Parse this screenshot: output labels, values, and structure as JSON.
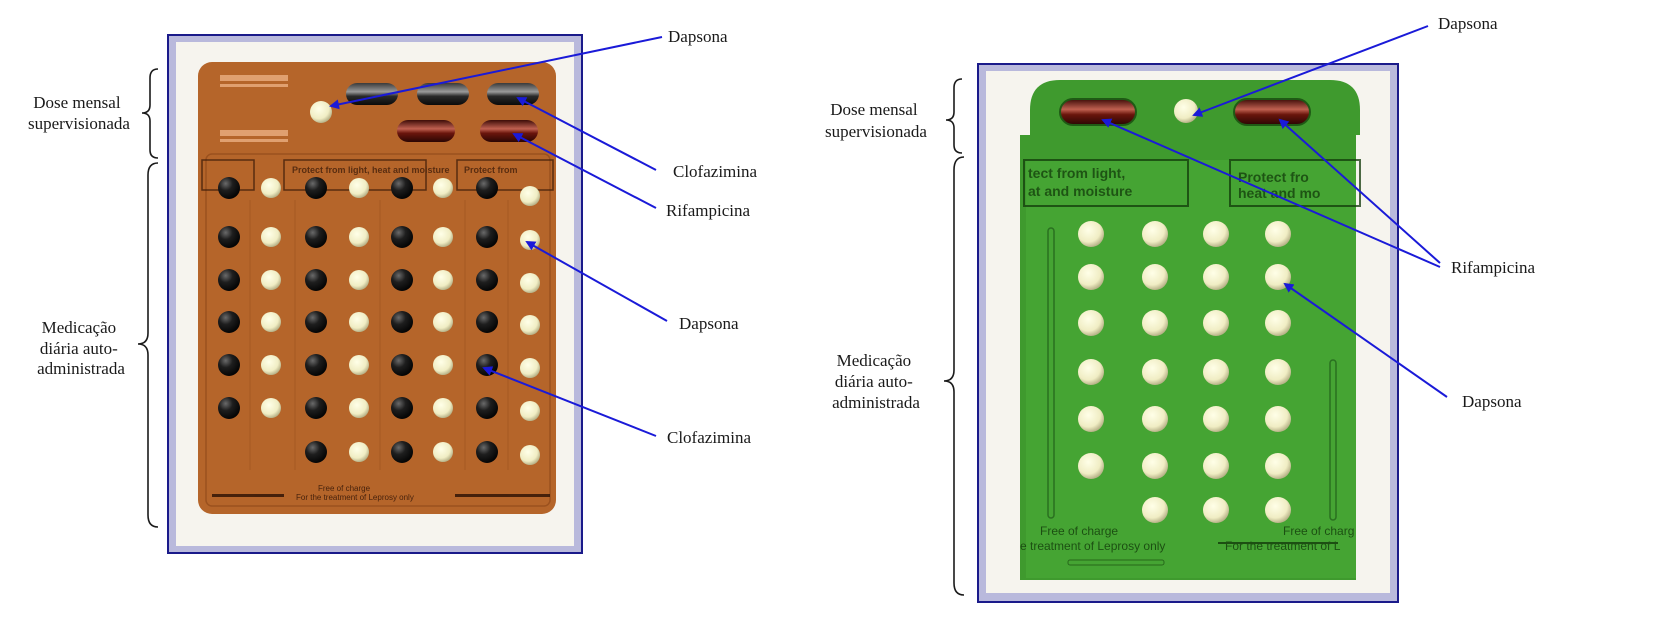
{
  "left_panel": {
    "side_labels": {
      "dose": [
        "Dose mensal",
        "supervisionada"
      ],
      "daily": [
        "Medicação",
        "diária auto-",
        "administrada"
      ]
    },
    "callouts": {
      "dapsona_top": "Dapsona",
      "clofazimina_top": "Clofazimina",
      "rifampicina": "Rifampicina",
      "dapsona_mid": "Dapsona",
      "clofazimina_bottom": "Clofazimina"
    },
    "pack": {
      "protect_text": "Protect from light, heat and moisture",
      "free_of_charge": "Free of charge",
      "for_treatment": "For the treatment of Leprosy only"
    },
    "colors": {
      "card": "#b5652a",
      "clofazimina": "#1c1c1c",
      "dapsona": "#f3f0c8",
      "rifampicina": "#7a1d12"
    }
  },
  "right_panel": {
    "side_labels": {
      "dose": [
        "Dose mensal",
        "supervisionada"
      ],
      "daily": [
        "Medicação",
        "diária auto-",
        "administrada"
      ]
    },
    "callouts": {
      "dapsona_top": "Dapsona",
      "rifampicina": "Rifampicina",
      "dapsona_mid": "Dapsona"
    },
    "pack": {
      "protect_text": "Protect from light, heat and moisture",
      "free_of_charge": "Free of charge",
      "for_treatment": "For the treatment of Leprosy only"
    },
    "colors": {
      "card": "#3f9a2e",
      "dapsona": "#f3f0c8",
      "rifampicina": "#8a1e14"
    }
  },
  "arrow_color": "#1a1ad8"
}
